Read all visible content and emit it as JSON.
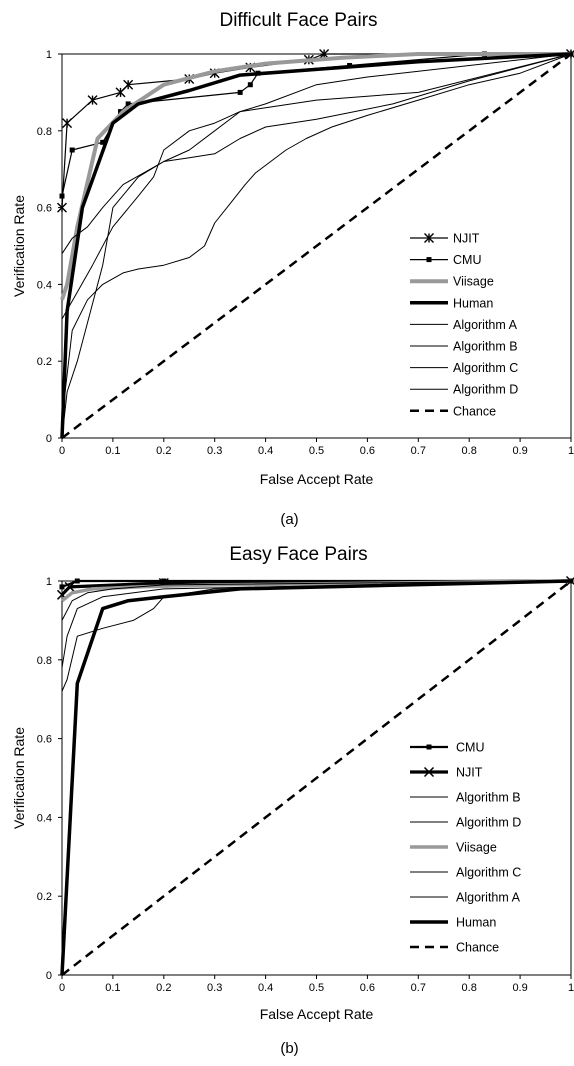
{
  "chart_data": [
    {
      "type": "line",
      "title": "Difficult Face Pairs",
      "xlabel": "False Accept Rate",
      "ylabel": "Verification Rate",
      "caption": "(a)",
      "xlim": [
        0,
        1
      ],
      "ylim": [
        0,
        1
      ],
      "xticks": [
        "0",
        "0.1",
        "0.2",
        "0.3",
        "0.4",
        "0.5",
        "0.6",
        "0.7",
        "0.8",
        "0.9",
        "1"
      ],
      "yticks": [
        "0",
        "0.2",
        "0.4",
        "0.6",
        "0.8",
        "1"
      ],
      "grid": false,
      "legend_position": "bottom-right",
      "series": [
        {
          "name": "NJIT",
          "color": "#000000",
          "width": 1.2,
          "dash": "",
          "marker": "asterisk",
          "x": [
            0,
            0.01,
            0.06,
            0.115,
            0.13,
            0.25,
            0.3,
            0.37,
            0.485,
            0.515,
            1
          ],
          "y": [
            0.6,
            0.82,
            0.88,
            0.9,
            0.92,
            0.935,
            0.95,
            0.965,
            0.985,
            1,
            1
          ]
        },
        {
          "name": "CMU",
          "color": "#000000",
          "width": 1.2,
          "dash": "",
          "marker": "square",
          "x": [
            0,
            0.02,
            0.08,
            0.115,
            0.13,
            0.35,
            0.37,
            0.385,
            0.565,
            0.83,
            1
          ],
          "y": [
            0.63,
            0.75,
            0.77,
            0.85,
            0.87,
            0.9,
            0.92,
            0.95,
            0.97,
            1,
            1
          ]
        },
        {
          "name": "Viisage",
          "color": "#999999",
          "width": 4,
          "dash": "",
          "marker": "",
          "x": [
            0,
            0.01,
            0.03,
            0.07,
            0.12,
            0.2,
            0.3,
            0.4,
            0.55,
            0.7,
            1
          ],
          "y": [
            0.36,
            0.4,
            0.55,
            0.78,
            0.85,
            0.92,
            0.955,
            0.975,
            0.99,
            1,
            1
          ]
        },
        {
          "name": "Human",
          "color": "#000000",
          "width": 3.5,
          "dash": "",
          "marker": "",
          "x": [
            0,
            0.01,
            0.04,
            0.1,
            0.15,
            0.25,
            0.35,
            0.5,
            0.7,
            1
          ],
          "y": [
            0,
            0.33,
            0.6,
            0.82,
            0.87,
            0.905,
            0.945,
            0.96,
            0.98,
            1
          ]
        },
        {
          "name": "Algorithm A",
          "color": "#000000",
          "width": 1,
          "dash": "",
          "marker": "",
          "x": [
            0,
            0.02,
            0.05,
            0.08,
            0.12,
            0.16,
            0.2,
            0.25,
            0.3,
            0.35,
            0.4,
            0.5,
            0.6,
            0.7,
            1
          ],
          "y": [
            0.48,
            0.52,
            0.55,
            0.6,
            0.66,
            0.69,
            0.72,
            0.75,
            0.8,
            0.85,
            0.86,
            0.88,
            0.89,
            0.9,
            1
          ]
        },
        {
          "name": "Algorithm B",
          "color": "#000000",
          "width": 1,
          "dash": "",
          "marker": "",
          "x": [
            0,
            0.03,
            0.06,
            0.1,
            0.15,
            0.18,
            0.2,
            0.25,
            0.3,
            0.35,
            0.4,
            0.5,
            0.6,
            1
          ],
          "y": [
            0.31,
            0.38,
            0.45,
            0.55,
            0.63,
            0.68,
            0.75,
            0.8,
            0.82,
            0.85,
            0.87,
            0.92,
            0.94,
            1
          ]
        },
        {
          "name": "Algorithm C",
          "color": "#000000",
          "width": 1,
          "dash": "",
          "marker": "",
          "x": [
            0,
            0.01,
            0.03,
            0.05,
            0.08,
            0.1,
            0.15,
            0.2,
            0.25,
            0.3,
            0.35,
            0.4,
            0.45,
            0.5,
            0.65,
            0.8,
            1
          ],
          "y": [
            0,
            0.12,
            0.2,
            0.3,
            0.45,
            0.6,
            0.68,
            0.72,
            0.73,
            0.74,
            0.78,
            0.81,
            0.82,
            0.83,
            0.87,
            0.93,
            1
          ]
        },
        {
          "name": "Algorithm D",
          "color": "#000000",
          "width": 1,
          "dash": "",
          "marker": "",
          "x": [
            0,
            0.02,
            0.05,
            0.08,
            0.12,
            0.15,
            0.2,
            0.25,
            0.28,
            0.3,
            0.33,
            0.36,
            0.38,
            0.41,
            0.44,
            0.48,
            0.53,
            0.6,
            0.7,
            0.8,
            0.9,
            1
          ],
          "y": [
            0.05,
            0.28,
            0.36,
            0.4,
            0.43,
            0.44,
            0.45,
            0.47,
            0.5,
            0.56,
            0.61,
            0.66,
            0.69,
            0.72,
            0.75,
            0.78,
            0.81,
            0.84,
            0.88,
            0.92,
            0.95,
            1
          ]
        },
        {
          "name": "Chance",
          "color": "#000000",
          "width": 2.5,
          "dash": "9,6",
          "marker": "",
          "x": [
            0,
            1
          ],
          "y": [
            0,
            1
          ]
        }
      ]
    },
    {
      "type": "line",
      "title": "Easy Face Pairs",
      "xlabel": "False Accept Rate",
      "ylabel": "Verification Rate",
      "caption": "(b)",
      "xlim": [
        0,
        1
      ],
      "ylim": [
        0,
        1
      ],
      "xticks": [
        "0",
        "0.1",
        "0.2",
        "0.3",
        "0.4",
        "0.5",
        "0.6",
        "0.7",
        "0.8",
        "0.9",
        "1"
      ],
      "yticks": [
        "0",
        "0.2",
        "0.4",
        "0.6",
        "0.8",
        "1"
      ],
      "grid": false,
      "legend_position": "bottom-right",
      "series": [
        {
          "name": "CMU",
          "color": "#000000",
          "width": 2.2,
          "dash": "",
          "marker": "square",
          "x": [
            0,
            0.03,
            0.2,
            1
          ],
          "y": [
            0.985,
            1,
            1,
            1
          ]
        },
        {
          "name": "NJIT",
          "color": "#000000",
          "width": 3.2,
          "dash": "",
          "marker": "x",
          "x": [
            0,
            0.015,
            0.2,
            1
          ],
          "y": [
            0.965,
            0.985,
            0.995,
            1
          ]
        },
        {
          "name": "Algorithm B",
          "color": "#000000",
          "width": 1,
          "dash": "",
          "marker": "",
          "x": [
            0,
            0.02,
            0.05,
            0.1,
            0.2,
            1
          ],
          "y": [
            0.95,
            0.97,
            0.98,
            0.99,
            0.995,
            1
          ]
        },
        {
          "name": "Algorithm D",
          "color": "#000000",
          "width": 1,
          "dash": "",
          "marker": "",
          "x": [
            0,
            0.01,
            0.03,
            0.08,
            0.2,
            1
          ],
          "y": [
            0.78,
            0.86,
            0.93,
            0.96,
            0.98,
            1
          ]
        },
        {
          "name": "Viisage",
          "color": "#999999",
          "width": 3.5,
          "dash": "",
          "marker": "",
          "x": [
            0,
            0.02,
            0.06,
            0.15,
            0.3,
            1
          ],
          "y": [
            0.95,
            0.97,
            0.98,
            0.985,
            0.99,
            1
          ]
        },
        {
          "name": "Algorithm C",
          "color": "#000000",
          "width": 1,
          "dash": "",
          "marker": "",
          "x": [
            0,
            0.02,
            0.05,
            0.1,
            0.2,
            1
          ],
          "y": [
            0.9,
            0.95,
            0.97,
            0.98,
            0.99,
            1
          ]
        },
        {
          "name": "Algorithm A",
          "color": "#000000",
          "width": 1,
          "dash": "",
          "marker": "",
          "x": [
            0,
            0.01,
            0.03,
            0.08,
            0.14,
            0.18,
            0.2,
            0.3,
            1
          ],
          "y": [
            0.72,
            0.75,
            0.86,
            0.88,
            0.9,
            0.93,
            0.96,
            0.98,
            1
          ]
        },
        {
          "name": "Human",
          "color": "#000000",
          "width": 3.5,
          "dash": "",
          "marker": "",
          "x": [
            0,
            0.03,
            0.08,
            0.13,
            0.2,
            0.35,
            1
          ],
          "y": [
            0,
            0.74,
            0.93,
            0.95,
            0.96,
            0.98,
            1
          ]
        },
        {
          "name": "Chance",
          "color": "#000000",
          "width": 2.5,
          "dash": "9,6",
          "marker": "",
          "x": [
            0,
            1
          ],
          "y": [
            0,
            1
          ]
        }
      ]
    }
  ]
}
